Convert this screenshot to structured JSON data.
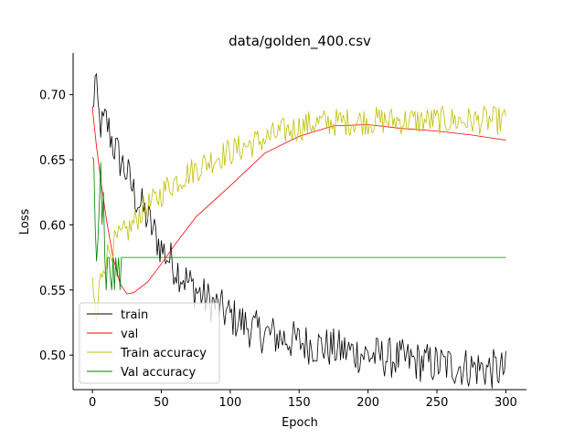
{
  "chart_data": {
    "type": "line",
    "title": "data/golden_400.csv",
    "xlabel": "Epoch",
    "ylabel": "Loss",
    "xlim": [
      -14,
      315
    ],
    "ylim": [
      0.4735,
      0.732
    ],
    "xticks": [
      0,
      50,
      100,
      150,
      200,
      250,
      300
    ],
    "yticks": [
      0.5,
      0.55,
      0.6,
      0.65,
      0.7
    ],
    "ytick_labels": [
      "0.50",
      "0.55",
      "0.60",
      "0.65",
      "0.70"
    ],
    "grid": false,
    "legend_position": "lower-left",
    "series": [
      {
        "name": "train",
        "color": "#000000",
        "noisy": true,
        "x": [
          0,
          2,
          3,
          5,
          7,
          10,
          15,
          20,
          25,
          30,
          40,
          50,
          60,
          70,
          80,
          100,
          120,
          150,
          200,
          250,
          300
        ],
        "y": [
          0.685,
          0.71,
          0.7,
          0.68,
          0.675,
          0.68,
          0.662,
          0.65,
          0.64,
          0.625,
          0.605,
          0.582,
          0.568,
          0.555,
          0.545,
          0.53,
          0.518,
          0.51,
          0.5,
          0.493,
          0.488
        ]
      },
      {
        "name": "val",
        "color": "#ff0000",
        "x": [
          0,
          3,
          6,
          10,
          15,
          20,
          25,
          30,
          40,
          50,
          60,
          75,
          100,
          125,
          150,
          175,
          200,
          225,
          250,
          275,
          300
        ],
        "y": [
          0.69,
          0.66,
          0.635,
          0.605,
          0.575,
          0.555,
          0.547,
          0.548,
          0.556,
          0.57,
          0.585,
          0.606,
          0.63,
          0.655,
          0.668,
          0.676,
          0.677,
          0.674,
          0.672,
          0.669,
          0.665
        ]
      },
      {
        "name": "Train accuracy",
        "color": "#bfbf00",
        "noisy": true,
        "x": [
          0,
          3,
          5,
          8,
          12,
          18,
          22,
          28,
          35,
          45,
          55,
          70,
          90,
          110,
          140,
          160,
          200,
          250,
          300
        ],
        "y": [
          0.556,
          0.525,
          0.552,
          0.57,
          0.58,
          0.588,
          0.592,
          0.598,
          0.61,
          0.618,
          0.63,
          0.64,
          0.652,
          0.66,
          0.672,
          0.678,
          0.68,
          0.68,
          0.68
        ]
      },
      {
        "name": "Val accuracy",
        "color": "#008000",
        "x": [
          0,
          1,
          2,
          3,
          4,
          5,
          6,
          7,
          8,
          9,
          10,
          11,
          12,
          13,
          14,
          15,
          16,
          17,
          18,
          19,
          20,
          21,
          22,
          300
        ],
        "y": [
          0.652,
          0.65,
          0.6,
          0.572,
          0.588,
          0.615,
          0.648,
          0.6,
          0.625,
          0.575,
          0.55,
          0.575,
          0.575,
          0.56,
          0.55,
          0.575,
          0.55,
          0.575,
          0.56,
          0.575,
          0.55,
          0.575,
          0.575,
          0.575
        ]
      }
    ]
  }
}
